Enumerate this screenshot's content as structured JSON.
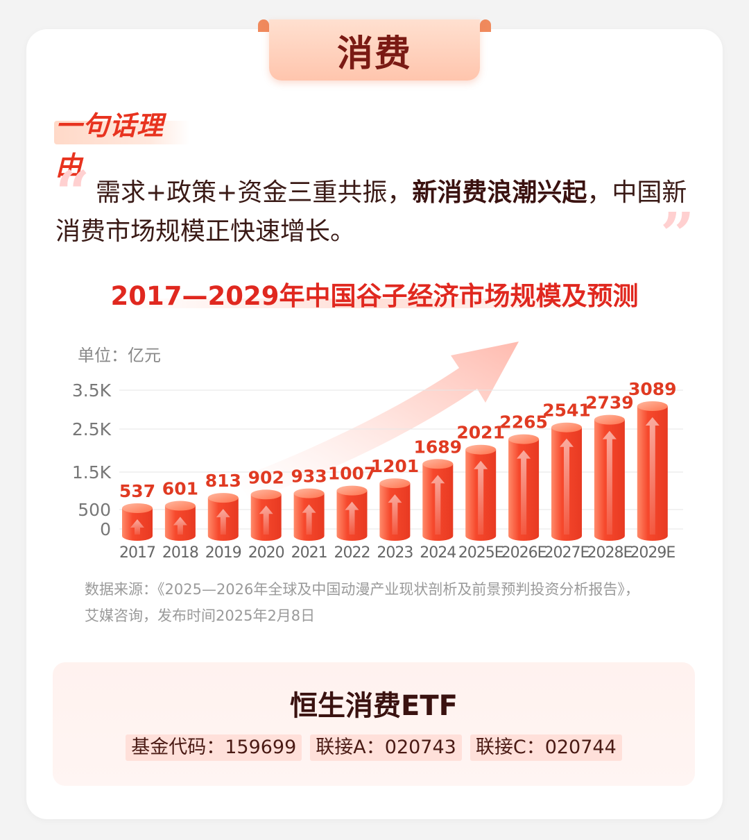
{
  "header": {
    "tab_label": "消费"
  },
  "reason": {
    "title": "一句话理由",
    "quote_open": "“",
    "quote_close": "”",
    "text_before": "需求+政策+资金三重共振，",
    "text_bold": "新消费浪潮兴起",
    "text_after": "，中国新消费市场规模正快速增长。"
  },
  "colors": {
    "accent": "#e8331f",
    "bar": "#f24a2e",
    "value_label": "#e03a22"
  },
  "chart_data": {
    "type": "bar",
    "title": "2017—2029年中国谷子经济市场规模及预测",
    "unit_label": "单位：亿元",
    "categories": [
      "2017",
      "2018",
      "2019",
      "2020",
      "2021",
      "2022",
      "2023",
      "2024",
      "2025E",
      "2026E",
      "2027E",
      "2028E",
      "2029E"
    ],
    "values": [
      537,
      601,
      813,
      902,
      933,
      1007,
      1201,
      1689,
      2021,
      2265,
      2541,
      2739,
      3089
    ],
    "y_ticks": [
      {
        "value": 0,
        "label": "0"
      },
      {
        "value": 500,
        "label": "500"
      },
      {
        "value": 1500,
        "label": "1.5K"
      },
      {
        "value": 2500,
        "label": "2.5K"
      },
      {
        "value": 3500,
        "label": "3.5K"
      }
    ],
    "ylim": [
      0,
      3500
    ],
    "grid": true,
    "legend": "none"
  },
  "source": {
    "line1": "数据来源：《2025—2026年全球及中国动漫产业现状剖析及前景预判投资分析报告》，",
    "line2": "艾媒咨询，发布时间2025年2月8日"
  },
  "fund": {
    "name": "恒生消费ETF",
    "codes": [
      "基金代码：159699",
      "联接A：020743",
      "联接C：020744"
    ]
  }
}
